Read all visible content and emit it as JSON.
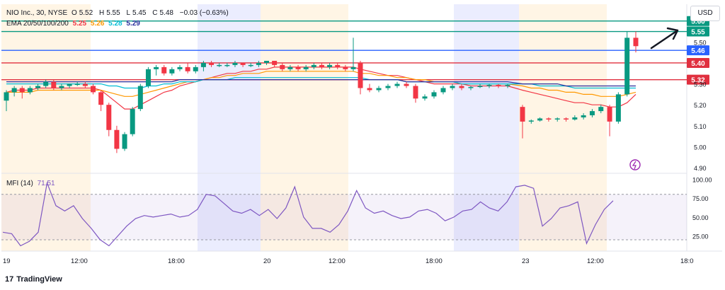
{
  "header": {
    "symbol": "NIO Inc., 30, NYSE",
    "open_label": "O",
    "open": "5.52",
    "high_label": "H",
    "high": "5.55",
    "low_label": "L",
    "low": "5.45",
    "close_label": "C",
    "close": "5.48",
    "change": "−0.03 (−0.63%)",
    "ema_label": "EMA 20/50/100/200",
    "ema20": "5.25",
    "ema50": "5.26",
    "ema100": "5.28",
    "ema200": "5.29"
  },
  "currency": "USD",
  "mfi": {
    "label": "MFI (14)",
    "value": "71.51"
  },
  "brand": {
    "logo": "17",
    "name": "TradingView"
  },
  "colors": {
    "up": "#089981",
    "down": "#f23645",
    "ema20": "#f23645",
    "ema50": "#ff9800",
    "ema100": "#00bcd4",
    "ema200": "#2a2e9c",
    "mfi": "#7e57c2",
    "level_green": "#089981",
    "level_blue": "#2962ff",
    "level_red": "#e0303f"
  },
  "chart_data": [
    {
      "type": "candlestick",
      "ylim": [
        4.88,
        5.68
      ],
      "y_ticks": [
        "5.50",
        "5.30",
        "5.20",
        "5.10",
        "5.00",
        "4.90"
      ],
      "x_ticks": [
        "19",
        "12:00",
        "18:00",
        "20",
        "12:00",
        "18:00",
        "23",
        "12:00",
        "18:0"
      ],
      "levels": [
        {
          "value": 5.6,
          "label": "5.60",
          "color": "level_green"
        },
        {
          "value": 5.55,
          "label": "5.55",
          "color": "level_green"
        },
        {
          "value": 5.46,
          "label": "5.46",
          "color": "level_blue"
        },
        {
          "value": 5.4,
          "label": "5.40",
          "color": "level_red"
        },
        {
          "value": 5.32,
          "label": "5.32",
          "color": "level_red"
        }
      ],
      "candles": [
        {
          "o": 5.22,
          "h": 5.27,
          "l": 5.17,
          "c": 5.26
        },
        {
          "o": 5.26,
          "h": 5.29,
          "l": 5.24,
          "c": 5.28
        },
        {
          "o": 5.28,
          "h": 5.29,
          "l": 5.23,
          "c": 5.26
        },
        {
          "o": 5.26,
          "h": 5.29,
          "l": 5.25,
          "c": 5.28
        },
        {
          "o": 5.28,
          "h": 5.3,
          "l": 5.27,
          "c": 5.29
        },
        {
          "o": 5.29,
          "h": 5.32,
          "l": 5.28,
          "c": 5.31
        },
        {
          "o": 5.31,
          "h": 5.32,
          "l": 5.27,
          "c": 5.28
        },
        {
          "o": 5.28,
          "h": 5.3,
          "l": 5.27,
          "c": 5.29
        },
        {
          "o": 5.29,
          "h": 5.3,
          "l": 5.28,
          "c": 5.3
        },
        {
          "o": 5.3,
          "h": 5.31,
          "l": 5.29,
          "c": 5.3
        },
        {
          "o": 5.3,
          "h": 5.31,
          "l": 5.28,
          "c": 5.29
        },
        {
          "o": 5.29,
          "h": 5.3,
          "l": 5.25,
          "c": 5.26
        },
        {
          "o": 5.26,
          "h": 5.27,
          "l": 5.17,
          "c": 5.2
        },
        {
          "o": 5.2,
          "h": 5.21,
          "l": 5.05,
          "c": 5.08
        },
        {
          "o": 5.08,
          "h": 5.1,
          "l": 4.97,
          "c": 4.99
        },
        {
          "o": 4.99,
          "h": 5.07,
          "l": 4.98,
          "c": 5.06
        },
        {
          "o": 5.06,
          "h": 5.19,
          "l": 5.05,
          "c": 5.18
        },
        {
          "o": 5.18,
          "h": 5.3,
          "l": 5.17,
          "c": 5.29
        },
        {
          "o": 5.29,
          "h": 5.38,
          "l": 5.28,
          "c": 5.37
        },
        {
          "o": 5.37,
          "h": 5.39,
          "l": 5.34,
          "c": 5.38
        },
        {
          "o": 5.38,
          "h": 5.39,
          "l": 5.34,
          "c": 5.35
        },
        {
          "o": 5.35,
          "h": 5.38,
          "l": 5.34,
          "c": 5.37
        },
        {
          "o": 5.37,
          "h": 5.39,
          "l": 5.36,
          "c": 5.38
        },
        {
          "o": 5.38,
          "h": 5.4,
          "l": 5.35,
          "c": 5.36
        },
        {
          "o": 5.36,
          "h": 5.39,
          "l": 5.35,
          "c": 5.38
        },
        {
          "o": 5.38,
          "h": 5.41,
          "l": 5.36,
          "c": 5.4
        },
        {
          "o": 5.4,
          "h": 5.41,
          "l": 5.38,
          "c": 5.39
        },
        {
          "o": 5.39,
          "h": 5.4,
          "l": 5.38,
          "c": 5.39
        },
        {
          "o": 5.39,
          "h": 5.4,
          "l": 5.38,
          "c": 5.39
        },
        {
          "o": 5.39,
          "h": 5.41,
          "l": 5.38,
          "c": 5.4
        },
        {
          "o": 5.4,
          "h": 5.4,
          "l": 5.38,
          "c": 5.39
        },
        {
          "o": 5.39,
          "h": 5.4,
          "l": 5.38,
          "c": 5.39
        },
        {
          "o": 5.39,
          "h": 5.41,
          "l": 5.38,
          "c": 5.4
        },
        {
          "o": 5.4,
          "h": 5.41,
          "l": 5.39,
          "c": 5.41
        },
        {
          "o": 5.41,
          "h": 5.41,
          "l": 5.38,
          "c": 5.39
        },
        {
          "o": 5.39,
          "h": 5.4,
          "l": 5.36,
          "c": 5.37
        },
        {
          "o": 5.37,
          "h": 5.39,
          "l": 5.36,
          "c": 5.38
        },
        {
          "o": 5.38,
          "h": 5.39,
          "l": 5.36,
          "c": 5.37
        },
        {
          "o": 5.37,
          "h": 5.39,
          "l": 5.36,
          "c": 5.38
        },
        {
          "o": 5.38,
          "h": 5.4,
          "l": 5.37,
          "c": 5.39
        },
        {
          "o": 5.39,
          "h": 5.4,
          "l": 5.37,
          "c": 5.38
        },
        {
          "o": 5.38,
          "h": 5.4,
          "l": 5.37,
          "c": 5.39
        },
        {
          "o": 5.39,
          "h": 5.4,
          "l": 5.37,
          "c": 5.38
        },
        {
          "o": 5.38,
          "h": 5.39,
          "l": 5.36,
          "c": 5.37
        },
        {
          "o": 5.37,
          "h": 5.52,
          "l": 5.36,
          "c": 5.38
        },
        {
          "o": 5.4,
          "h": 5.41,
          "l": 5.25,
          "c": 5.28
        },
        {
          "o": 5.28,
          "h": 5.3,
          "l": 5.26,
          "c": 5.27
        },
        {
          "o": 5.27,
          "h": 5.29,
          "l": 5.26,
          "c": 5.28
        },
        {
          "o": 5.28,
          "h": 5.3,
          "l": 5.27,
          "c": 5.29
        },
        {
          "o": 5.29,
          "h": 5.31,
          "l": 5.28,
          "c": 5.3
        },
        {
          "o": 5.3,
          "h": 5.31,
          "l": 5.28,
          "c": 5.29
        },
        {
          "o": 5.29,
          "h": 5.3,
          "l": 5.21,
          "c": 5.23
        },
        {
          "o": 5.23,
          "h": 5.25,
          "l": 5.22,
          "c": 5.24
        },
        {
          "o": 5.24,
          "h": 5.27,
          "l": 5.23,
          "c": 5.26
        },
        {
          "o": 5.26,
          "h": 5.29,
          "l": 5.25,
          "c": 5.28
        },
        {
          "o": 5.28,
          "h": 5.3,
          "l": 5.27,
          "c": 5.29
        },
        {
          "o": 5.29,
          "h": 5.3,
          "l": 5.27,
          "c": 5.28
        },
        {
          "o": 5.28,
          "h": 5.29,
          "l": 5.27,
          "c": 5.285
        },
        {
          "o": 5.285,
          "h": 5.3,
          "l": 5.28,
          "c": 5.29
        },
        {
          "o": 5.29,
          "h": 5.3,
          "l": 5.28,
          "c": 5.295
        },
        {
          "o": 5.295,
          "h": 5.3,
          "l": 5.28,
          "c": 5.29
        },
        {
          "o": 5.29,
          "h": 5.3,
          "l": 5.28,
          "c": 5.295
        },
        {
          "o": 5.19,
          "h": 5.2,
          "l": 5.04,
          "c": 5.12
        },
        {
          "o": 5.12,
          "h": 5.13,
          "l": 5.11,
          "c": 5.125
        },
        {
          "o": 5.125,
          "h": 5.14,
          "l": 5.12,
          "c": 5.135
        },
        {
          "o": 5.135,
          "h": 5.14,
          "l": 5.12,
          "c": 5.13
        },
        {
          "o": 5.13,
          "h": 5.14,
          "l": 5.12,
          "c": 5.135
        },
        {
          "o": 5.135,
          "h": 5.14,
          "l": 5.12,
          "c": 5.13
        },
        {
          "o": 5.13,
          "h": 5.15,
          "l": 5.125,
          "c": 5.14
        },
        {
          "o": 5.14,
          "h": 5.16,
          "l": 5.13,
          "c": 5.15
        },
        {
          "o": 5.15,
          "h": 5.18,
          "l": 5.14,
          "c": 5.17
        },
        {
          "o": 5.17,
          "h": 5.2,
          "l": 5.16,
          "c": 5.19
        },
        {
          "o": 5.19,
          "h": 5.2,
          "l": 5.05,
          "c": 5.12
        },
        {
          "o": 5.12,
          "h": 5.26,
          "l": 5.11,
          "c": 5.25
        },
        {
          "o": 5.25,
          "h": 5.55,
          "l": 5.24,
          "c": 5.52
        },
        {
          "o": 5.52,
          "h": 5.55,
          "l": 5.45,
          "c": 5.48
        }
      ],
      "ema_series": [
        {
          "name": "EMA 20",
          "values": [
            5.26,
            5.27,
            5.27,
            5.27,
            5.28,
            5.28,
            5.28,
            5.28,
            5.28,
            5.28,
            5.28,
            5.28,
            5.27,
            5.24,
            5.21,
            5.18,
            5.18,
            5.2,
            5.22,
            5.24,
            5.26,
            5.27,
            5.29,
            5.3,
            5.31,
            5.32,
            5.33,
            5.34,
            5.35,
            5.35,
            5.36,
            5.36,
            5.37,
            5.37,
            5.38,
            5.38,
            5.38,
            5.38,
            5.38,
            5.38,
            5.38,
            5.38,
            5.38,
            5.38,
            5.38,
            5.37,
            5.36,
            5.35,
            5.34,
            5.34,
            5.33,
            5.32,
            5.31,
            5.3,
            5.3,
            5.3,
            5.3,
            5.29,
            5.29,
            5.29,
            5.29,
            5.29,
            5.27,
            5.26,
            5.25,
            5.24,
            5.23,
            5.22,
            5.21,
            5.21,
            5.2,
            5.2,
            5.19,
            5.19,
            5.21,
            5.25
          ]
        },
        {
          "name": "EMA 50",
          "values": [
            5.26,
            5.26,
            5.26,
            5.26,
            5.27,
            5.27,
            5.27,
            5.27,
            5.27,
            5.27,
            5.27,
            5.27,
            5.27,
            5.26,
            5.25,
            5.24,
            5.24,
            5.25,
            5.26,
            5.27,
            5.28,
            5.29,
            5.3,
            5.31,
            5.31,
            5.32,
            5.33,
            5.33,
            5.34,
            5.34,
            5.35,
            5.35,
            5.35,
            5.36,
            5.36,
            5.36,
            5.36,
            5.36,
            5.36,
            5.36,
            5.36,
            5.36,
            5.36,
            5.36,
            5.36,
            5.35,
            5.35,
            5.34,
            5.34,
            5.33,
            5.33,
            5.32,
            5.32,
            5.31,
            5.31,
            5.31,
            5.3,
            5.3,
            5.3,
            5.3,
            5.3,
            5.3,
            5.29,
            5.28,
            5.28,
            5.27,
            5.27,
            5.26,
            5.26,
            5.25,
            5.25,
            5.24,
            5.24,
            5.24,
            5.25,
            5.26
          ]
        },
        {
          "name": "EMA 100",
          "values": [
            5.3,
            5.3,
            5.3,
            5.3,
            5.3,
            5.3,
            5.3,
            5.3,
            5.3,
            5.3,
            5.3,
            5.3,
            5.3,
            5.29,
            5.29,
            5.28,
            5.28,
            5.28,
            5.29,
            5.29,
            5.3,
            5.3,
            5.31,
            5.31,
            5.31,
            5.32,
            5.32,
            5.32,
            5.32,
            5.33,
            5.33,
            5.33,
            5.33,
            5.33,
            5.33,
            5.33,
            5.33,
            5.33,
            5.33,
            5.33,
            5.33,
            5.33,
            5.33,
            5.33,
            5.33,
            5.33,
            5.32,
            5.32,
            5.32,
            5.32,
            5.31,
            5.31,
            5.31,
            5.31,
            5.31,
            5.31,
            5.3,
            5.3,
            5.3,
            5.3,
            5.3,
            5.3,
            5.3,
            5.3,
            5.29,
            5.29,
            5.29,
            5.29,
            5.28,
            5.28,
            5.28,
            5.28,
            5.28,
            5.28,
            5.28,
            5.28
          ]
        },
        {
          "name": "EMA 200",
          "values": [
            5.31,
            5.31,
            5.31,
            5.31,
            5.31,
            5.31,
            5.31,
            5.31,
            5.31,
            5.31,
            5.31,
            5.31,
            5.31,
            5.31,
            5.31,
            5.31,
            5.31,
            5.31,
            5.31,
            5.31,
            5.31,
            5.31,
            5.32,
            5.32,
            5.32,
            5.32,
            5.32,
            5.32,
            5.32,
            5.32,
            5.32,
            5.32,
            5.32,
            5.32,
            5.32,
            5.32,
            5.32,
            5.32,
            5.32,
            5.32,
            5.32,
            5.32,
            5.32,
            5.32,
            5.32,
            5.32,
            5.32,
            5.32,
            5.32,
            5.32,
            5.31,
            5.31,
            5.31,
            5.31,
            5.31,
            5.31,
            5.31,
            5.31,
            5.31,
            5.31,
            5.31,
            5.31,
            5.3,
            5.3,
            5.3,
            5.3,
            5.3,
            5.29,
            5.29,
            5.29,
            5.29,
            5.29,
            5.29,
            5.29,
            5.29,
            5.29
          ]
        }
      ]
    },
    {
      "type": "line",
      "title": "MFI (14)",
      "ylim": [
        5,
        105
      ],
      "y_ticks": [
        "100.00",
        "75.00",
        "50.00",
        "25.00"
      ],
      "bands": [
        80,
        20
      ],
      "values": [
        30,
        28,
        12,
        18,
        30,
        95,
        65,
        58,
        65,
        48,
        35,
        20,
        12,
        25,
        38,
        48,
        52,
        50,
        52,
        54,
        50,
        52,
        60,
        80,
        78,
        68,
        58,
        55,
        60,
        52,
        60,
        48,
        62,
        90,
        50,
        35,
        35,
        30,
        40,
        58,
        85,
        62,
        55,
        58,
        52,
        48,
        50,
        58,
        60,
        55,
        45,
        50,
        58,
        60,
        70,
        62,
        58,
        70,
        90,
        92,
        88,
        38,
        48,
        62,
        65,
        70,
        15,
        40,
        60,
        71.51
      ]
    }
  ]
}
